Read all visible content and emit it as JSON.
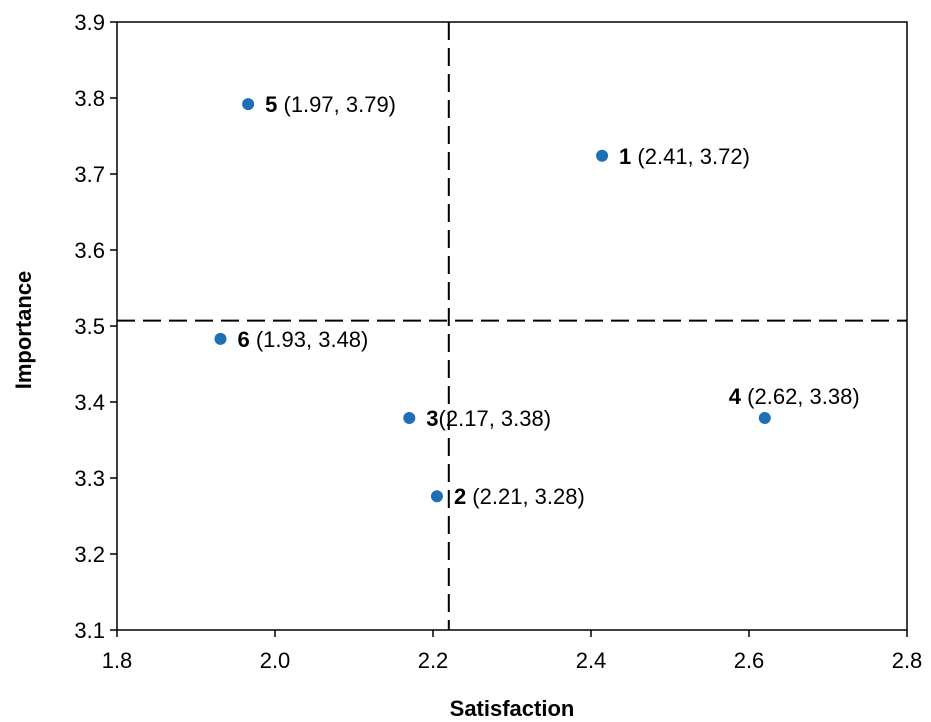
{
  "chart_data": {
    "type": "scatter",
    "title": "",
    "xlabel": "Satisfaction",
    "ylabel": "Importance",
    "xlim": [
      1.8,
      2.8
    ],
    "ylim": [
      3.1,
      3.9
    ],
    "xticks": [
      "1.8",
      "2.0",
      "2.2",
      "2.4",
      "2.6",
      "2.8"
    ],
    "yticks": [
      "3.1",
      "3.2",
      "3.3",
      "3.4",
      "3.5",
      "3.6",
      "3.7",
      "3.8",
      "3.9"
    ],
    "grid": false,
    "reference_lines": {
      "x": 2.22,
      "y": 3.507
    },
    "marker_color": "#1f6fb5",
    "points": [
      {
        "id": "1",
        "x": 2.414,
        "y": 3.724,
        "coord_text": " (2.41, 3.72)",
        "label_side": "right"
      },
      {
        "id": "2",
        "x": 2.205,
        "y": 3.276,
        "coord_text": " (2.21, 3.28)",
        "label_side": "right"
      },
      {
        "id": "3",
        "x": 2.17,
        "y": 3.379,
        "coord_text": "(2.17, 3.38)",
        "label_side": "right"
      },
      {
        "id": "4",
        "x": 2.62,
        "y": 3.379,
        "coord_text": " (2.62, 3.38)",
        "label_side": "above"
      },
      {
        "id": "5",
        "x": 1.966,
        "y": 3.792,
        "coord_text": " (1.97, 3.79)",
        "label_side": "right"
      },
      {
        "id": "6",
        "x": 1.931,
        "y": 3.483,
        "coord_text": " (1.93, 3.48)",
        "label_side": "right"
      }
    ]
  }
}
